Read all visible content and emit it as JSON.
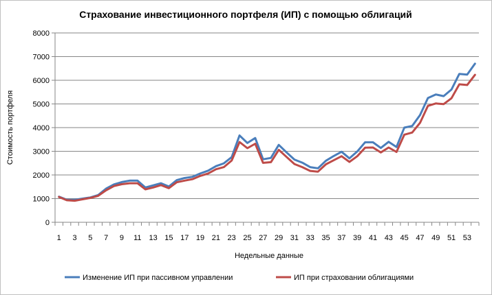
{
  "chart_data": {
    "type": "line",
    "title": "Страхование инвестиционного портфеля (ИП) с помощью облигаций",
    "xlabel": "Недельные данные",
    "ylabel": "Стоимость портфеля",
    "ylim": [
      0,
      8000
    ],
    "yticks": [
      0,
      1000,
      2000,
      3000,
      4000,
      5000,
      6000,
      7000,
      8000
    ],
    "x": [
      1,
      2,
      3,
      4,
      5,
      6,
      7,
      8,
      9,
      10,
      11,
      12,
      13,
      14,
      15,
      16,
      17,
      18,
      19,
      20,
      21,
      22,
      23,
      24,
      25,
      26,
      27,
      28,
      29,
      30,
      31,
      32,
      33,
      34,
      35,
      36,
      37,
      38,
      39,
      40,
      41,
      42,
      43,
      44,
      45,
      46,
      47,
      48,
      49,
      50,
      51,
      52,
      53,
      54
    ],
    "xtick_labels": [
      1,
      3,
      5,
      7,
      9,
      11,
      13,
      15,
      17,
      19,
      21,
      23,
      25,
      27,
      29,
      31,
      33,
      35,
      37,
      39,
      41,
      43,
      45,
      47,
      49,
      51,
      53
    ],
    "grid": "horizontal",
    "legend_position": "bottom",
    "series": [
      {
        "name": "Изменение ИП при пассивном управлении",
        "color": "#4a7ebb",
        "values": [
          1080,
          950,
          950,
          1000,
          1050,
          1150,
          1420,
          1600,
          1700,
          1760,
          1760,
          1470,
          1560,
          1650,
          1510,
          1780,
          1870,
          1920,
          2060,
          2180,
          2370,
          2490,
          2750,
          3670,
          3350,
          3560,
          2660,
          2720,
          3270,
          2950,
          2650,
          2520,
          2330,
          2280,
          2600,
          2800,
          2980,
          2700,
          2990,
          3380,
          3380,
          3140,
          3400,
          3180,
          4000,
          4070,
          4530,
          5250,
          5400,
          5330,
          5610,
          6270,
          6240,
          6700
        ]
      },
      {
        "name": "ИП при страховании облигациями",
        "color": "#be4b48",
        "values": [
          1070,
          930,
          910,
          970,
          1030,
          1120,
          1350,
          1530,
          1610,
          1650,
          1650,
          1390,
          1470,
          1570,
          1440,
          1690,
          1760,
          1820,
          1960,
          2060,
          2240,
          2330,
          2610,
          3390,
          3130,
          3320,
          2510,
          2540,
          3060,
          2760,
          2460,
          2330,
          2170,
          2140,
          2450,
          2620,
          2790,
          2550,
          2790,
          3150,
          3160,
          2950,
          3160,
          2970,
          3700,
          3790,
          4200,
          4920,
          5020,
          4990,
          5240,
          5830,
          5800,
          6230
        ]
      }
    ]
  }
}
